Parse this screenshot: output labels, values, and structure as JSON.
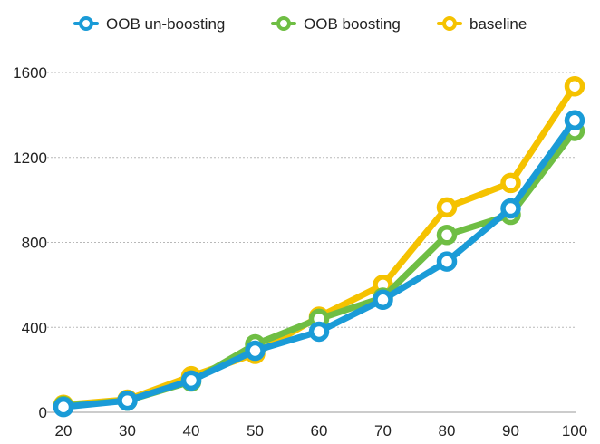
{
  "chart_data": {
    "type": "line",
    "title": "",
    "xlabel": "",
    "ylabel": "",
    "x": [
      20,
      30,
      40,
      50,
      60,
      70,
      80,
      90,
      100
    ],
    "x_tick_labels": [
      "20",
      "30",
      "40",
      "50",
      "60",
      "70",
      "80",
      "90",
      "100"
    ],
    "y_ticks": [
      0,
      400,
      800,
      1200,
      1600
    ],
    "y_tick_labels": [
      "0",
      "400",
      "800",
      "1200",
      "1600"
    ],
    "ylim": [
      0,
      1600
    ],
    "grid": true,
    "legend_position": "top",
    "series": [
      {
        "name": "baseline",
        "color": "#f5c200",
        "values": [
          35,
          60,
          170,
          275,
          450,
          600,
          965,
          1080,
          1535
        ]
      },
      {
        "name": "OOB boosting",
        "color": "#6fbe44",
        "values": [
          30,
          55,
          145,
          320,
          440,
          540,
          835,
          930,
          1325
        ]
      },
      {
        "name": "OOB un-boosting",
        "color": "#1a9bd7",
        "values": [
          25,
          55,
          150,
          290,
          380,
          530,
          710,
          960,
          1375
        ]
      }
    ],
    "legend_order": [
      "OOB un-boosting",
      "OOB boosting",
      "baseline"
    ]
  }
}
